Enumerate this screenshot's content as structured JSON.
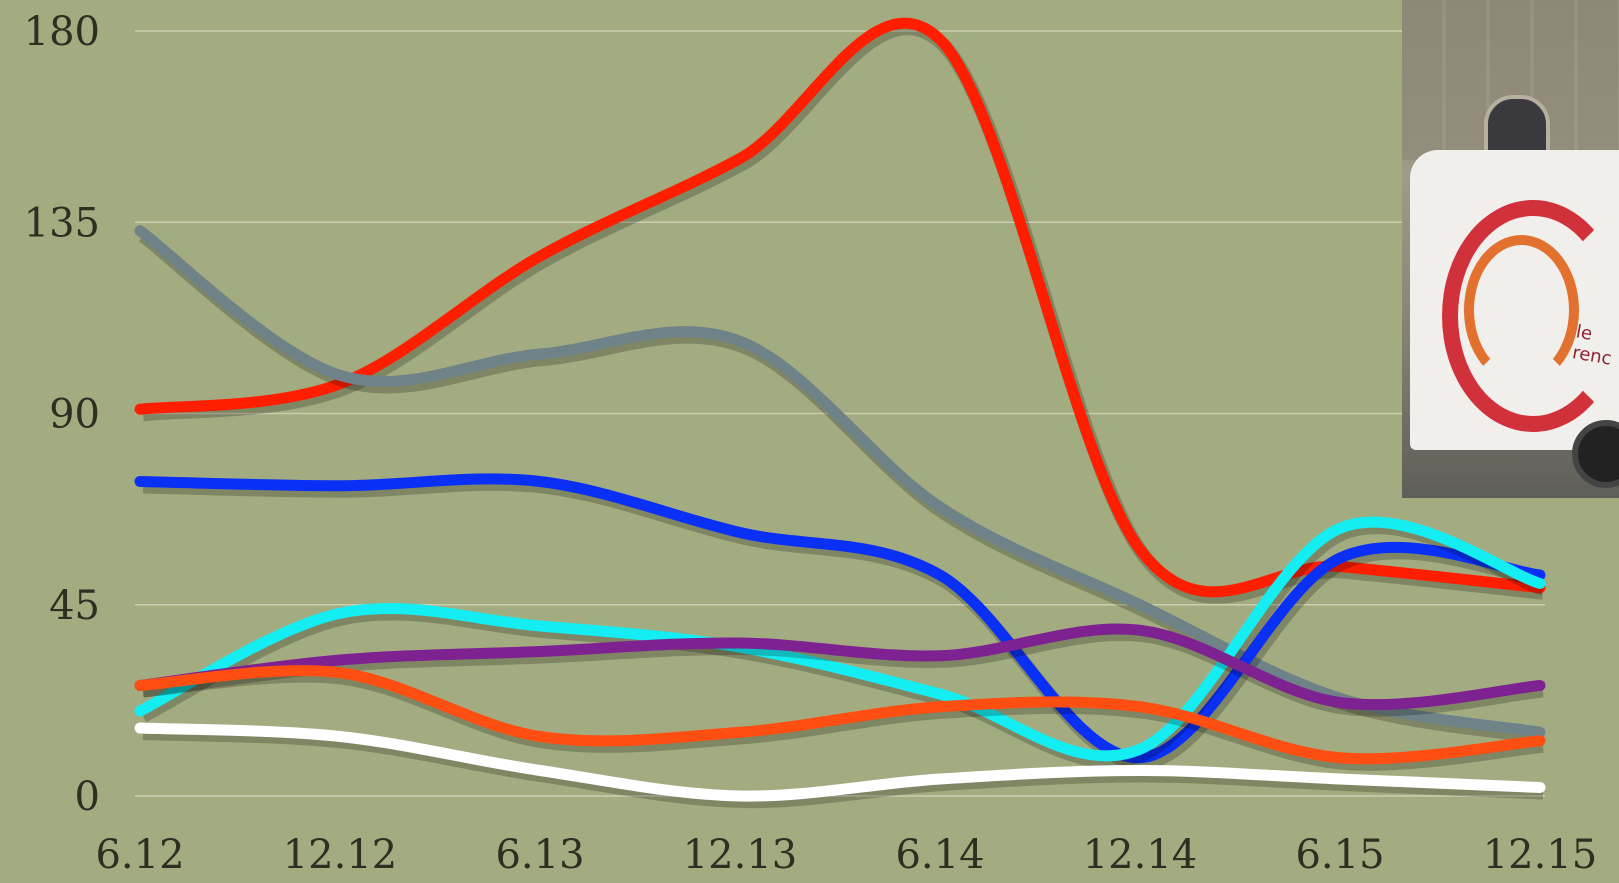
{
  "chart_data": {
    "type": "line",
    "x": [
      "6.12",
      "12.12",
      "6.13",
      "12.13",
      "6.14",
      "12.14",
      "6.15",
      "12.15"
    ],
    "yticks": [
      "0",
      "45",
      "90",
      "135",
      "180"
    ],
    "ylim": [
      0,
      180
    ],
    "grid": true,
    "series": [
      {
        "color": "#ff1e00",
        "values": [
          91,
          97,
          127,
          150,
          178,
          58,
          54,
          49
        ]
      },
      {
        "color": "#6f8287",
        "values": [
          133,
          99,
          104,
          107,
          68,
          45,
          23,
          15
        ]
      },
      {
        "color": "#0a2ff5",
        "values": [
          74,
          73,
          74,
          62,
          52,
          9,
          56,
          52
        ]
      },
      {
        "color": "#14eef2",
        "values": [
          20,
          43,
          40,
          35,
          24,
          11,
          63,
          50
        ]
      },
      {
        "color": "#7e2191",
        "values": [
          26,
          32,
          34,
          36,
          33,
          39,
          22,
          26
        ]
      },
      {
        "color": "#ff4e12",
        "values": [
          26,
          29,
          14,
          15,
          21,
          21,
          9,
          13
        ]
      },
      {
        "color": "#ffffff",
        "values": [
          16,
          14,
          6,
          0,
          4,
          6,
          4,
          2
        ]
      }
    ]
  },
  "photo": {
    "image": "van-photo",
    "van_text": "le renc"
  }
}
